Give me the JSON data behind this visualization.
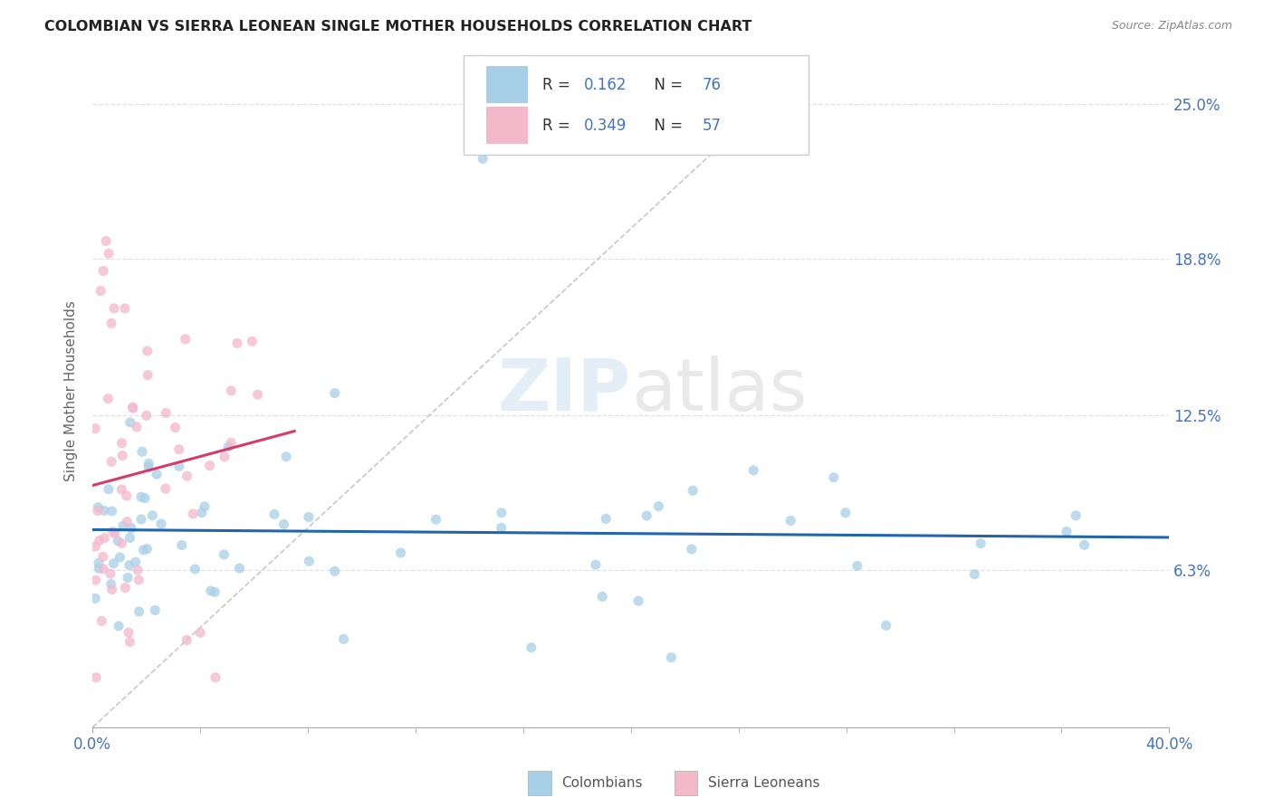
{
  "title": "COLOMBIAN VS SIERRA LEONEAN SINGLE MOTHER HOUSEHOLDS CORRELATION CHART",
  "source": "Source: ZipAtlas.com",
  "ylabel": "Single Mother Households",
  "ytick_labels": [
    "6.3%",
    "12.5%",
    "18.8%",
    "25.0%"
  ],
  "ytick_values": [
    0.063,
    0.125,
    0.188,
    0.25
  ],
  "xlim": [
    0.0,
    0.4
  ],
  "ylim": [
    0.0,
    0.27
  ],
  "xtick_left_label": "0.0%",
  "xtick_right_label": "40.0%",
  "colombian_color": "#a8cfe8",
  "sierraleonean_color": "#f4b8cb",
  "colombian_line_color": "#2166ac",
  "sierraleonean_line_color": "#d63b6b",
  "diagonal_color": "#c8c8c8",
  "watermark_zip": "ZIP",
  "watermark_atlas": "atlas",
  "background_color": "#ffffff",
  "grid_color": "#e0e0e0",
  "legend_r_color": "#4472c4",
  "legend_n_color": "#4472c4",
  "legend_text_color": "#333333",
  "bottom_label_color": "#555555",
  "title_color": "#222222",
  "source_color": "#888888",
  "ylabel_color": "#666666"
}
